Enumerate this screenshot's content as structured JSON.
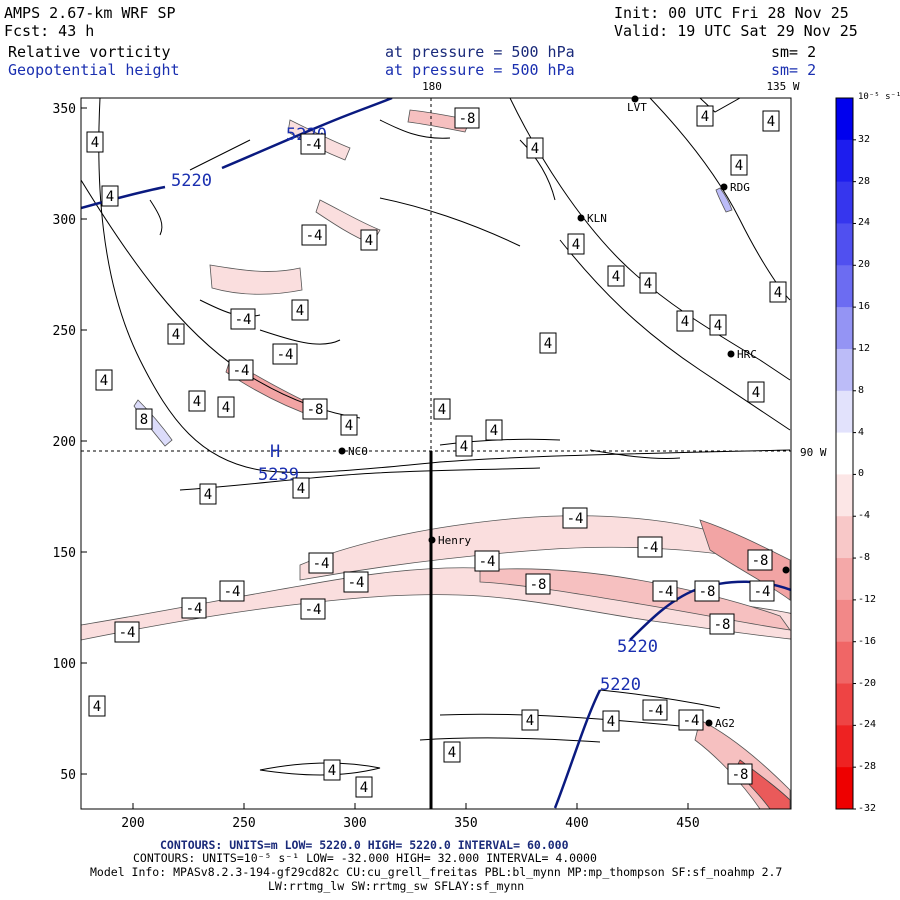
{
  "header": {
    "model": "AMPS 2.67-km WRF SP",
    "init": "Init: 00 UTC Fri 28 Nov 25",
    "forecast": "Fcst:   43 h",
    "valid": "Valid: 19 UTC Sat 29 Nov 25",
    "field1_name": "Relative vorticity",
    "field1_level": "at pressure =  500 hPa",
    "field1_sm": "sm= 2",
    "field2_name": "Geopotential height",
    "field2_level": "at pressure =  500 hPa",
    "field2_sm": "sm= 2"
  },
  "map": {
    "top_labels": [
      "180",
      "135 W"
    ],
    "right_label": "90 W",
    "y_ticks": [
      "350",
      "300",
      "250",
      "200",
      "150",
      "100",
      "50"
    ],
    "x_ticks": [
      "200",
      "250",
      "300",
      "350",
      "400",
      "450"
    ],
    "stations": [
      "LVT",
      "RDG",
      "KLN",
      "HRC",
      "NCO",
      "Henry",
      "AG2"
    ],
    "high_marker": "H",
    "high_value": "5239",
    "height_contour_labels": [
      "5220",
      "5220",
      "5220",
      "5220"
    ],
    "vorticity_labels": [
      "4",
      "4",
      "4",
      "4",
      "4",
      "4",
      "4",
      "4",
      "4",
      "4",
      "4",
      "4",
      "4",
      "4",
      "4",
      "4",
      "4",
      "4",
      "4",
      "4",
      "4",
      "4",
      "4",
      "4",
      "4",
      "4",
      "4",
      "4",
      "4",
      "4",
      "4",
      "4",
      "8",
      "-4",
      "-4",
      "-4",
      "-4",
      "-4",
      "-8",
      "-8",
      "-4",
      "-4",
      "-4",
      "-4",
      "-4",
      "-4",
      "-4",
      "-4",
      "-4",
      "-8",
      "-8",
      "-8",
      "-4",
      "-4",
      "-8",
      "-4",
      "-4",
      "-8"
    ]
  },
  "colorbar": {
    "unit": "10⁻⁵ s⁻¹",
    "labels": [
      "32",
      "28",
      "24",
      "20",
      "16",
      "12",
      "8",
      "4",
      "0",
      "-4",
      "-8",
      "-12",
      "-16",
      "-20",
      "-24",
      "-28",
      "-32"
    ],
    "colors": [
      "#0000ee",
      "#1d1dee",
      "#3636ee",
      "#5050f0",
      "#6c6cf2",
      "#9494f4",
      "#bcbcf8",
      "#e2e2fc",
      "#ffffff",
      "#fce6e6",
      "#f8c8c8",
      "#f4a8a8",
      "#f28888",
      "#f06666",
      "#ee4444",
      "#ee2222",
      "#ee0000"
    ]
  },
  "footer": {
    "line1": "CONTOURS: UNITS=m  LOW=  5220.0       HIGH=  5220.0       INTERVAL=  60.000",
    "line2": "CONTOURS: UNITS=10⁻⁵ s⁻¹  LOW= -32.000       HIGH= 32.000       INTERVAL=  4.0000",
    "line3": "Model Info: MPASv8.2.3-194-gf29cd82c CU:cu_grell_freitas PBL:bl_mynn MP:mp_thompson SF:sf_noahmp 2.7",
    "line4": "LW:rrtmg_lw SW:rrtmg_sw SFLAY:sf_mynn"
  }
}
